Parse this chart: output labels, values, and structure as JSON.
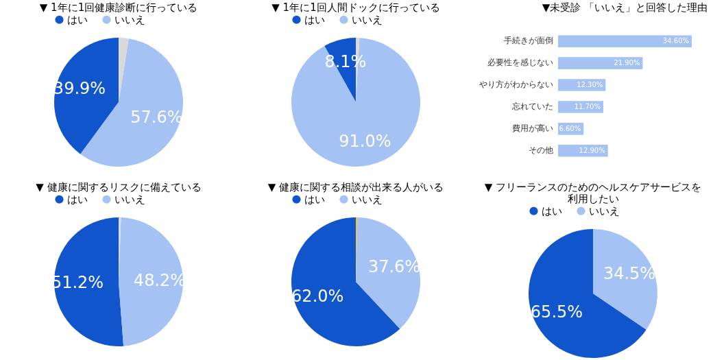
{
  "chart_data": [
    {
      "type": "pie",
      "title": "▼ 1年に1回健康診断に行っている",
      "categories": [
        "はい",
        "いいえ",
        null
      ],
      "values": [
        39.9,
        57.6,
        2.5
      ],
      "colors": [
        "#1155cc",
        "#a4c2f4",
        "#d9d9d9"
      ],
      "value_labels": [
        "39.9%",
        "57.6%",
        null
      ],
      "legend": "top"
    },
    {
      "type": "pie",
      "title": "▼ 1年に1回人間ドックに行っている",
      "categories": [
        "はい",
        "いいえ",
        null
      ],
      "values": [
        8.1,
        91.0,
        0.9
      ],
      "colors": [
        "#1155cc",
        "#a4c2f4",
        "#d9d9d9"
      ],
      "value_labels": [
        "8.1%",
        "91.0%",
        null
      ],
      "legend": "top"
    },
    {
      "type": "bar",
      "orientation": "horizontal",
      "title": "▼未受診 「いいえ」と回答した理由",
      "categories": [
        "手続きが面倒",
        "必要性を感じない",
        "やり方がわからない",
        "忘れていた",
        "費用が高い",
        "その他"
      ],
      "values": [
        34.6,
        21.9,
        12.3,
        11.7,
        6.6,
        12.9
      ],
      "value_labels": [
        "34.60%",
        "21.90%",
        "12.30%",
        "11.70%",
        "6.60%",
        "12.90%"
      ],
      "color": "#a4c2f4",
      "tick_labels": "y"
    },
    {
      "type": "pie",
      "title": "▼ 健康に関するリスクに備えている",
      "categories": [
        "はい",
        "いいえ",
        null
      ],
      "values": [
        51.2,
        48.2,
        0.6
      ],
      "colors": [
        "#1155cc",
        "#a4c2f4",
        "#d9d9d9"
      ],
      "value_labels": [
        "51.2%",
        "48.2%",
        null
      ],
      "legend": "top"
    },
    {
      "type": "pie",
      "title": "▼ 健康に関する相談が出来る人がいる",
      "categories": [
        "はい",
        "いいえ",
        null
      ],
      "values": [
        62.0,
        37.6,
        0.4
      ],
      "colors": [
        "#1155cc",
        "#a4c2f4",
        "#f1c232"
      ],
      "value_labels": [
        "62.0%",
        "37.6%",
        null
      ],
      "legend": "top"
    },
    {
      "type": "pie",
      "title": "▼ フリーランスのためのヘルスケアサービスを利用したい",
      "categories": [
        "はい",
        "いいえ"
      ],
      "values": [
        65.5,
        34.5
      ],
      "colors": [
        "#1155cc",
        "#a4c2f4"
      ],
      "value_labels": [
        "65.5%",
        "34.5%"
      ],
      "legend": "top"
    }
  ]
}
